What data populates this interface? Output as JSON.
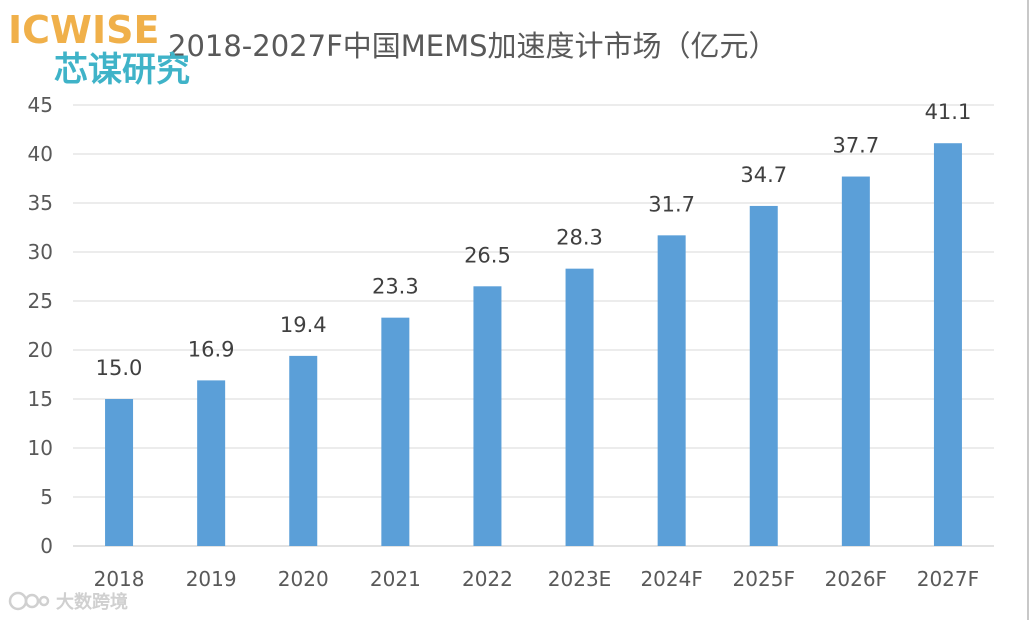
{
  "logo": {
    "brand_en": "ICWISE",
    "brand_cn": "芯谋研究"
  },
  "watermark": {
    "text": "大数跨境"
  },
  "colors": {
    "bar": "#5b9fd8",
    "grid": "#d9d9d9",
    "title": "#595959",
    "tick": "#595959",
    "label": "#404040",
    "logo_orange": "#f0b04a",
    "logo_teal": "#3fb3c8"
  },
  "chart_data": {
    "type": "bar",
    "title": "2018-2027F中国MEMS加速度计市场（亿元）",
    "xlabel": "",
    "ylabel": "",
    "categories": [
      "2018",
      "2019",
      "2020",
      "2021",
      "2022",
      "2023E",
      "2024F",
      "2025F",
      "2026F",
      "2027F"
    ],
    "values": [
      15.0,
      16.9,
      19.4,
      23.3,
      26.5,
      28.3,
      31.7,
      34.7,
      37.7,
      41.1
    ],
    "value_labels": [
      "15.0",
      "16.9",
      "19.4",
      "23.3",
      "26.5",
      "28.3",
      "31.7",
      "34.7",
      "37.7",
      "41.1"
    ],
    "ylim": [
      0,
      45
    ],
    "yticks": [
      0,
      5,
      10,
      15,
      20,
      25,
      30,
      35,
      40,
      45
    ],
    "grid": true,
    "legend": "none"
  }
}
